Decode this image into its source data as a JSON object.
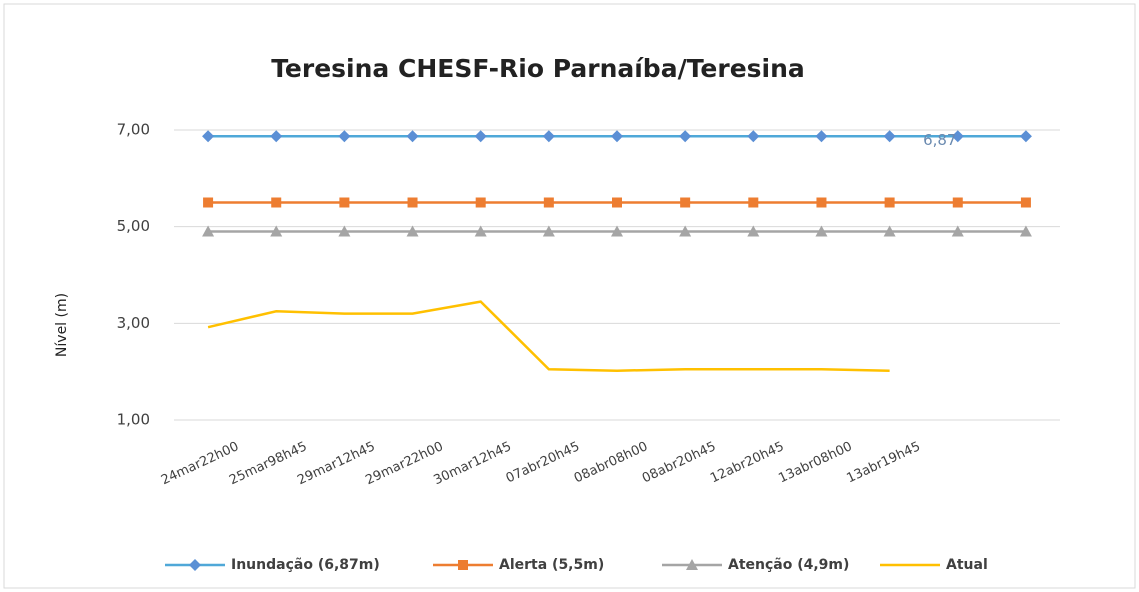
{
  "chart_data": {
    "type": "line",
    "title": "Teresina CHESF-Rio Parnaíba/Teresina",
    "y_label": "Nível (m)",
    "categories": [
      "24mar22h00",
      "25mar98h45",
      "29mar12h45",
      "29mar22h00",
      "30mar12h45",
      "07abr20h45",
      "08abr08h00",
      "08abr20h45",
      "12abr20h45",
      "13abr08h00",
      "13abr19h45",
      null,
      null
    ],
    "series": [
      {
        "name": "Inundação (6,87m)",
        "color": "#4fa8d8",
        "marker": "diamond",
        "values": [
          6.87,
          6.87,
          6.87,
          6.87,
          6.87,
          6.87,
          6.87,
          6.87,
          6.87,
          6.87,
          6.87,
          6.87,
          6.87
        ],
        "value_labels": [
          null,
          null,
          null,
          null,
          null,
          null,
          null,
          null,
          null,
          null,
          null,
          "6,87",
          null
        ]
      },
      {
        "name": "Alerta (5,5m)",
        "color": "#ed7d31",
        "marker": "square",
        "values": [
          5.5,
          5.5,
          5.5,
          5.5,
          5.5,
          5.5,
          5.5,
          5.5,
          5.5,
          5.5,
          5.5,
          5.5,
          5.5
        ]
      },
      {
        "name": "Atenção (4,9m)",
        "color": "#a5a5a5",
        "marker": "triangle",
        "values": [
          4.9,
          4.9,
          4.9,
          4.9,
          4.9,
          4.9,
          4.9,
          4.9,
          4.9,
          4.9,
          4.9,
          4.9,
          4.9
        ]
      },
      {
        "name": "Atual",
        "color": "#ffc000",
        "marker": "none",
        "values": [
          2.92,
          3.25,
          3.2,
          3.2,
          3.45,
          2.05,
          2.02,
          2.05,
          2.05,
          2.05,
          2.02,
          null,
          null
        ]
      }
    ],
    "ylim": [
      1,
      7
    ],
    "yticks": [
      {
        "value": 1,
        "label": "1,00"
      },
      {
        "value": 3,
        "label": "3,00"
      },
      {
        "value": 5,
        "label": "5,00"
      },
      {
        "value": 7,
        "label": "7,00"
      }
    ],
    "grid": true,
    "legend": "bottom"
  }
}
